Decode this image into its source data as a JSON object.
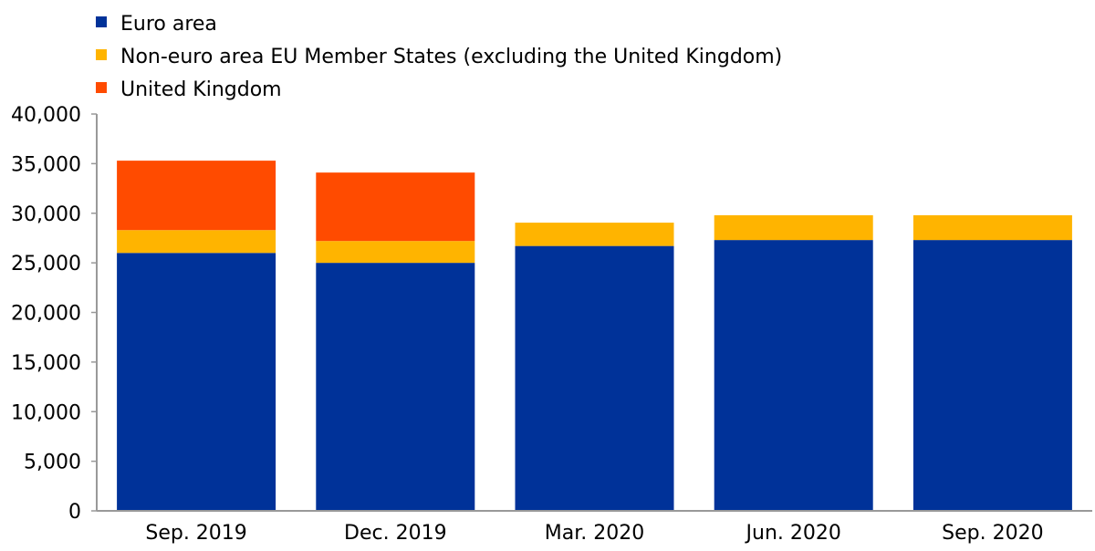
{
  "chart_data": {
    "type": "bar",
    "stacked": true,
    "title": "",
    "xlabel": "",
    "ylabel": "",
    "ylim": [
      0,
      40000
    ],
    "yticks": [
      0,
      5000,
      10000,
      15000,
      20000,
      25000,
      30000,
      35000,
      40000
    ],
    "ytick_labels": [
      "0",
      "5,000",
      "10,000",
      "15,000",
      "20,000",
      "25,000",
      "30,000",
      "35,000",
      "40,000"
    ],
    "grid": false,
    "legend_position": "top-left",
    "categories": [
      "Sep. 2019",
      "Dec. 2019",
      "Mar. 2020",
      "Jun. 2020",
      "Sep. 2020"
    ],
    "series": [
      {
        "name": "Euro area",
        "color": "#003299",
        "values": [
          26000,
          25000,
          26700,
          27300,
          27300
        ]
      },
      {
        "name": "Non-euro area EU Member States (excluding the United Kingdom)",
        "color": "#FFB400",
        "values": [
          2300,
          2200,
          2350,
          2500,
          2500
        ]
      },
      {
        "name": "United Kingdom",
        "color": "#FF4B00",
        "values": [
          7000,
          6900,
          0,
          0,
          0
        ]
      }
    ]
  }
}
